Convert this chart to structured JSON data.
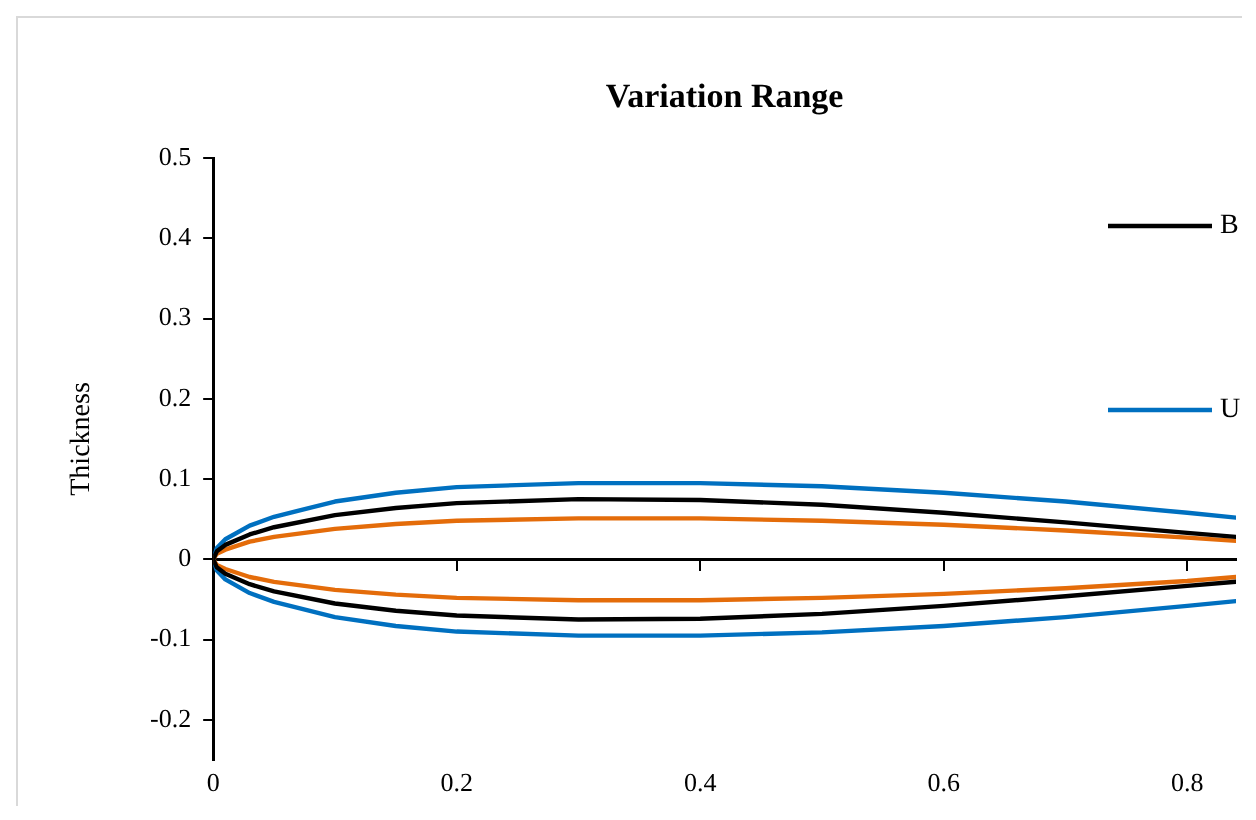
{
  "chart_data": {
    "type": "line",
    "title": "Variation Range",
    "ylabel": "Thickness",
    "xlim": [
      0,
      0.84
    ],
    "ylim": [
      -0.25,
      0.5
    ],
    "xticks": [
      0,
      0.2,
      0.4,
      0.6,
      0.8
    ],
    "yticks": [
      -0.2,
      -0.1,
      0,
      0.1,
      0.2,
      0.3,
      0.4,
      0.5
    ],
    "legend": "right",
    "marker": "none",
    "line_style": "solid",
    "series": [
      {
        "name": "B",
        "color": "#000000",
        "x": [
          0.84,
          0.8,
          0.7,
          0.6,
          0.5,
          0.4,
          0.3,
          0.2,
          0.15,
          0.1,
          0.05,
          0.03,
          0.01,
          0.003,
          0,
          0.003,
          0.01,
          0.03,
          0.05,
          0.1,
          0.15,
          0.2,
          0.3,
          0.4,
          0.5,
          0.6,
          0.7,
          0.8,
          0.84
        ],
        "values": [
          0.028,
          0.033,
          0.046,
          0.058,
          0.068,
          0.074,
          0.075,
          0.07,
          0.064,
          0.055,
          0.04,
          0.031,
          0.018,
          0.01,
          0,
          -0.01,
          -0.018,
          -0.031,
          -0.04,
          -0.055,
          -0.064,
          -0.07,
          -0.075,
          -0.074,
          -0.068,
          -0.058,
          -0.046,
          -0.033,
          -0.028
        ]
      },
      {
        "color": "#e46c0a",
        "x": [
          0.84,
          0.8,
          0.7,
          0.6,
          0.5,
          0.4,
          0.3,
          0.2,
          0.15,
          0.1,
          0.05,
          0.03,
          0.01,
          0.003,
          0,
          0.003,
          0.01,
          0.03,
          0.05,
          0.1,
          0.15,
          0.2,
          0.3,
          0.4,
          0.5,
          0.6,
          0.7,
          0.8,
          0.84
        ],
        "values": [
          0.023,
          0.027,
          0.036,
          0.043,
          0.048,
          0.051,
          0.051,
          0.048,
          0.044,
          0.038,
          0.028,
          0.022,
          0.012,
          0.007,
          0,
          -0.007,
          -0.012,
          -0.022,
          -0.028,
          -0.038,
          -0.044,
          -0.048,
          -0.051,
          -0.051,
          -0.048,
          -0.043,
          -0.036,
          -0.027,
          -0.022
        ]
      },
      {
        "name": "U",
        "color": "#0070c0",
        "x": [
          0.84,
          0.8,
          0.7,
          0.6,
          0.5,
          0.4,
          0.3,
          0.2,
          0.15,
          0.1,
          0.05,
          0.03,
          0.01,
          0.003,
          0,
          0.003,
          0.01,
          0.03,
          0.05,
          0.1,
          0.15,
          0.2,
          0.3,
          0.4,
          0.5,
          0.6,
          0.7,
          0.8,
          0.84
        ],
        "values": [
          0.052,
          0.058,
          0.072,
          0.083,
          0.091,
          0.095,
          0.095,
          0.09,
          0.083,
          0.072,
          0.053,
          0.042,
          0.025,
          0.014,
          0,
          -0.014,
          -0.025,
          -0.042,
          -0.053,
          -0.072,
          -0.083,
          -0.09,
          -0.095,
          -0.095,
          -0.091,
          -0.083,
          -0.072,
          -0.058,
          -0.052
        ]
      }
    ]
  }
}
